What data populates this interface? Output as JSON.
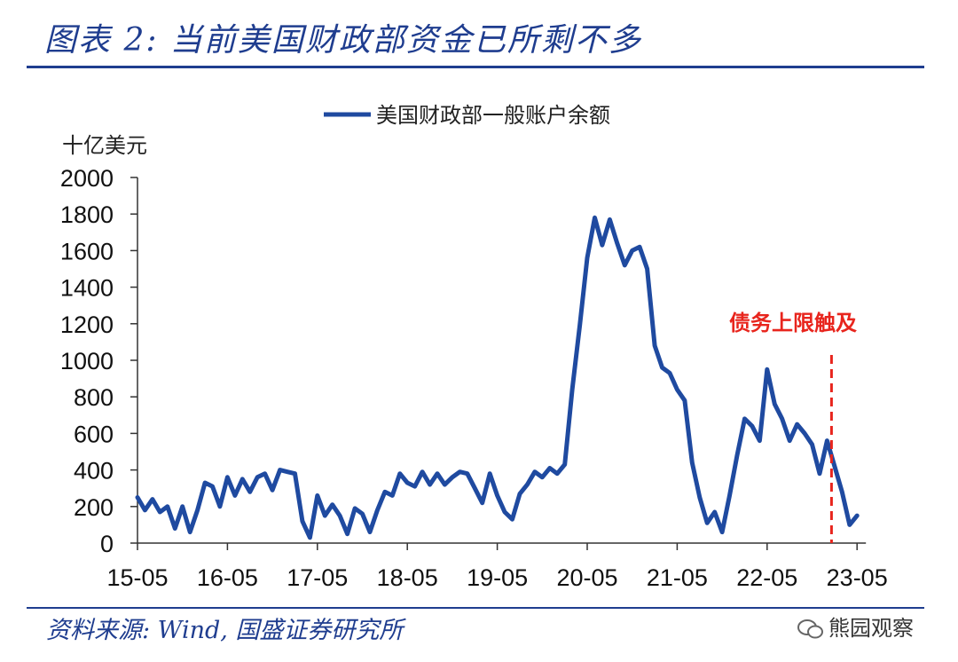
{
  "header": {
    "title": "图表 2:  当前美国财政部资金已所剩不多"
  },
  "footer": {
    "source": "资料来源: Wind, 国盛证券研究所",
    "watermark": "熊园观察"
  },
  "chart_data": {
    "type": "line",
    "title": "",
    "ylabel": "十亿美元",
    "xlabel": "",
    "ylim": [
      0,
      2000
    ],
    "yticks": [
      0,
      200,
      400,
      600,
      800,
      1000,
      1200,
      1400,
      1600,
      1800,
      2000
    ],
    "xtick_labels": [
      "15-05",
      "16-05",
      "17-05",
      "18-05",
      "19-05",
      "20-05",
      "21-05",
      "22-05",
      "23-05"
    ],
    "legend": {
      "position": "top",
      "entries": [
        "美国财政部一般账户余额"
      ]
    },
    "series": [
      {
        "name": "美国财政部一般账户余额",
        "color": "#1f4aa0",
        "points": [
          [
            "15-05",
            250
          ],
          [
            "15-06",
            180
          ],
          [
            "15-07",
            240
          ],
          [
            "15-08",
            170
          ],
          [
            "15-09",
            200
          ],
          [
            "15-10",
            80
          ],
          [
            "15-11",
            200
          ],
          [
            "15-12",
            60
          ],
          [
            "16-01",
            180
          ],
          [
            "16-02",
            330
          ],
          [
            "16-03",
            310
          ],
          [
            "16-04",
            200
          ],
          [
            "16-05",
            360
          ],
          [
            "16-06",
            260
          ],
          [
            "16-07",
            350
          ],
          [
            "16-08",
            280
          ],
          [
            "16-09",
            360
          ],
          [
            "16-10",
            380
          ],
          [
            "16-11",
            290
          ],
          [
            "16-12",
            400
          ],
          [
            "17-01",
            390
          ],
          [
            "17-02",
            380
          ],
          [
            "17-03",
            120
          ],
          [
            "17-04",
            30
          ],
          [
            "17-05",
            260
          ],
          [
            "17-06",
            150
          ],
          [
            "17-07",
            210
          ],
          [
            "17-08",
            150
          ],
          [
            "17-09",
            50
          ],
          [
            "17-10",
            190
          ],
          [
            "17-11",
            160
          ],
          [
            "17-12",
            60
          ],
          [
            "18-01",
            180
          ],
          [
            "18-02",
            280
          ],
          [
            "18-03",
            260
          ],
          [
            "18-04",
            380
          ],
          [
            "18-05",
            330
          ],
          [
            "18-06",
            310
          ],
          [
            "18-07",
            390
          ],
          [
            "18-08",
            320
          ],
          [
            "18-09",
            380
          ],
          [
            "18-10",
            320
          ],
          [
            "18-11",
            360
          ],
          [
            "18-12",
            390
          ],
          [
            "19-01",
            380
          ],
          [
            "19-02",
            300
          ],
          [
            "19-03",
            220
          ],
          [
            "19-04",
            380
          ],
          [
            "19-05",
            260
          ],
          [
            "19-06",
            170
          ],
          [
            "19-07",
            130
          ],
          [
            "19-08",
            270
          ],
          [
            "19-09",
            320
          ],
          [
            "19-10",
            390
          ],
          [
            "19-11",
            360
          ],
          [
            "19-12",
            410
          ],
          [
            "20-01",
            380
          ],
          [
            "20-02",
            430
          ],
          [
            "20-03",
            840
          ],
          [
            "20-04",
            1190
          ],
          [
            "20-05",
            1560
          ],
          [
            "20-06",
            1780
          ],
          [
            "20-07",
            1630
          ],
          [
            "20-08",
            1770
          ],
          [
            "20-09",
            1640
          ],
          [
            "20-10",
            1520
          ],
          [
            "20-11",
            1600
          ],
          [
            "20-12",
            1620
          ],
          [
            "21-01",
            1500
          ],
          [
            "21-02",
            1080
          ],
          [
            "21-03",
            960
          ],
          [
            "21-04",
            930
          ],
          [
            "21-05",
            840
          ],
          [
            "21-06",
            780
          ],
          [
            "21-07",
            440
          ],
          [
            "21-08",
            250
          ],
          [
            "21-09",
            110
          ],
          [
            "21-10",
            170
          ],
          [
            "21-11",
            60
          ],
          [
            "21-12",
            260
          ],
          [
            "22-01",
            480
          ],
          [
            "22-02",
            680
          ],
          [
            "22-03",
            640
          ],
          [
            "22-04",
            560
          ],
          [
            "22-05",
            950
          ],
          [
            "22-06",
            760
          ],
          [
            "22-07",
            680
          ],
          [
            "22-08",
            560
          ],
          [
            "22-09",
            650
          ],
          [
            "22-10",
            600
          ],
          [
            "22-11",
            540
          ],
          [
            "22-12",
            380
          ],
          [
            "23-01",
            560
          ],
          [
            "23-02",
            420
          ],
          [
            "23-03",
            280
          ],
          [
            "23-04",
            100
          ],
          [
            "23-05",
            150
          ]
        ]
      }
    ],
    "annotations": [
      {
        "text": "债务上限触及",
        "x": "23-01",
        "color": "#e8251d",
        "style": "dashed-vertical-line"
      }
    ]
  }
}
